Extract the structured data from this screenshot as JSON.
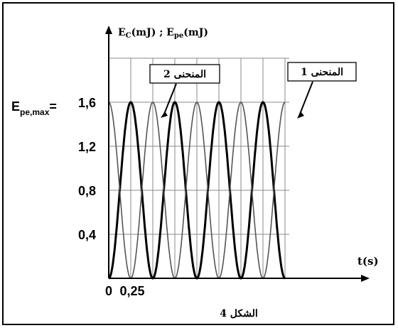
{
  "chart_data": {
    "type": "line",
    "y_axis_label_main": "E",
    "y_axis_label_sub1": "C",
    "y_axis_label_mid": "(mJ) ; E",
    "y_axis_label_sub2": "pe",
    "y_axis_label_end": "(mJ)",
    "x_axis_label": "t(s)",
    "emax_label_main": "E",
    "emax_label_sub": "pe,max",
    "emax_label_eq": "=",
    "y_ticks": [
      {
        "value": 0.4,
        "label": "0,4"
      },
      {
        "value": 0.8,
        "label": "0,8"
      },
      {
        "value": 1.2,
        "label": "1,2"
      },
      {
        "value": 1.6,
        "label": "1,6"
      }
    ],
    "x_ticks": [
      {
        "value": 0,
        "label": "0"
      },
      {
        "value": 0.25,
        "label": "0,25"
      }
    ],
    "xlim": [
      0,
      2.05
    ],
    "ylim": [
      0,
      2.0
    ],
    "grid": true,
    "series": [
      {
        "name": "المنحنى 1",
        "style": "thick",
        "color": "#000000",
        "x": [
          0,
          0.125,
          0.25,
          0.375,
          0.5,
          0.625,
          0.75,
          0.875,
          1.0,
          1.125,
          1.25,
          1.375,
          1.5,
          1.625,
          1.75,
          1.875,
          2.0
        ],
        "y": [
          0,
          0.8,
          1.6,
          0.8,
          0,
          0.8,
          1.6,
          0.8,
          0,
          0.8,
          1.6,
          0.8,
          0,
          0.8,
          1.6,
          0.8,
          0
        ]
      },
      {
        "name": "المنحنى 2",
        "style": "thin",
        "color": "#555555",
        "x": [
          0,
          0.125,
          0.25,
          0.375,
          0.5,
          0.625,
          0.75,
          0.875,
          1.0,
          1.125,
          1.25,
          1.375,
          1.5,
          1.625,
          1.75,
          1.875,
          2.0
        ],
        "y": [
          1.6,
          0.8,
          0,
          0.8,
          1.6,
          0.8,
          0,
          0.8,
          1.6,
          0.8,
          0,
          0.8,
          1.6,
          0.8,
          0,
          0.8,
          1.6
        ]
      }
    ],
    "annotations": [
      {
        "id": "curve2",
        "text": "المنحنى 2"
      },
      {
        "id": "curve1",
        "text": "المنحنى 1"
      }
    ],
    "caption": "الشكل 4"
  }
}
